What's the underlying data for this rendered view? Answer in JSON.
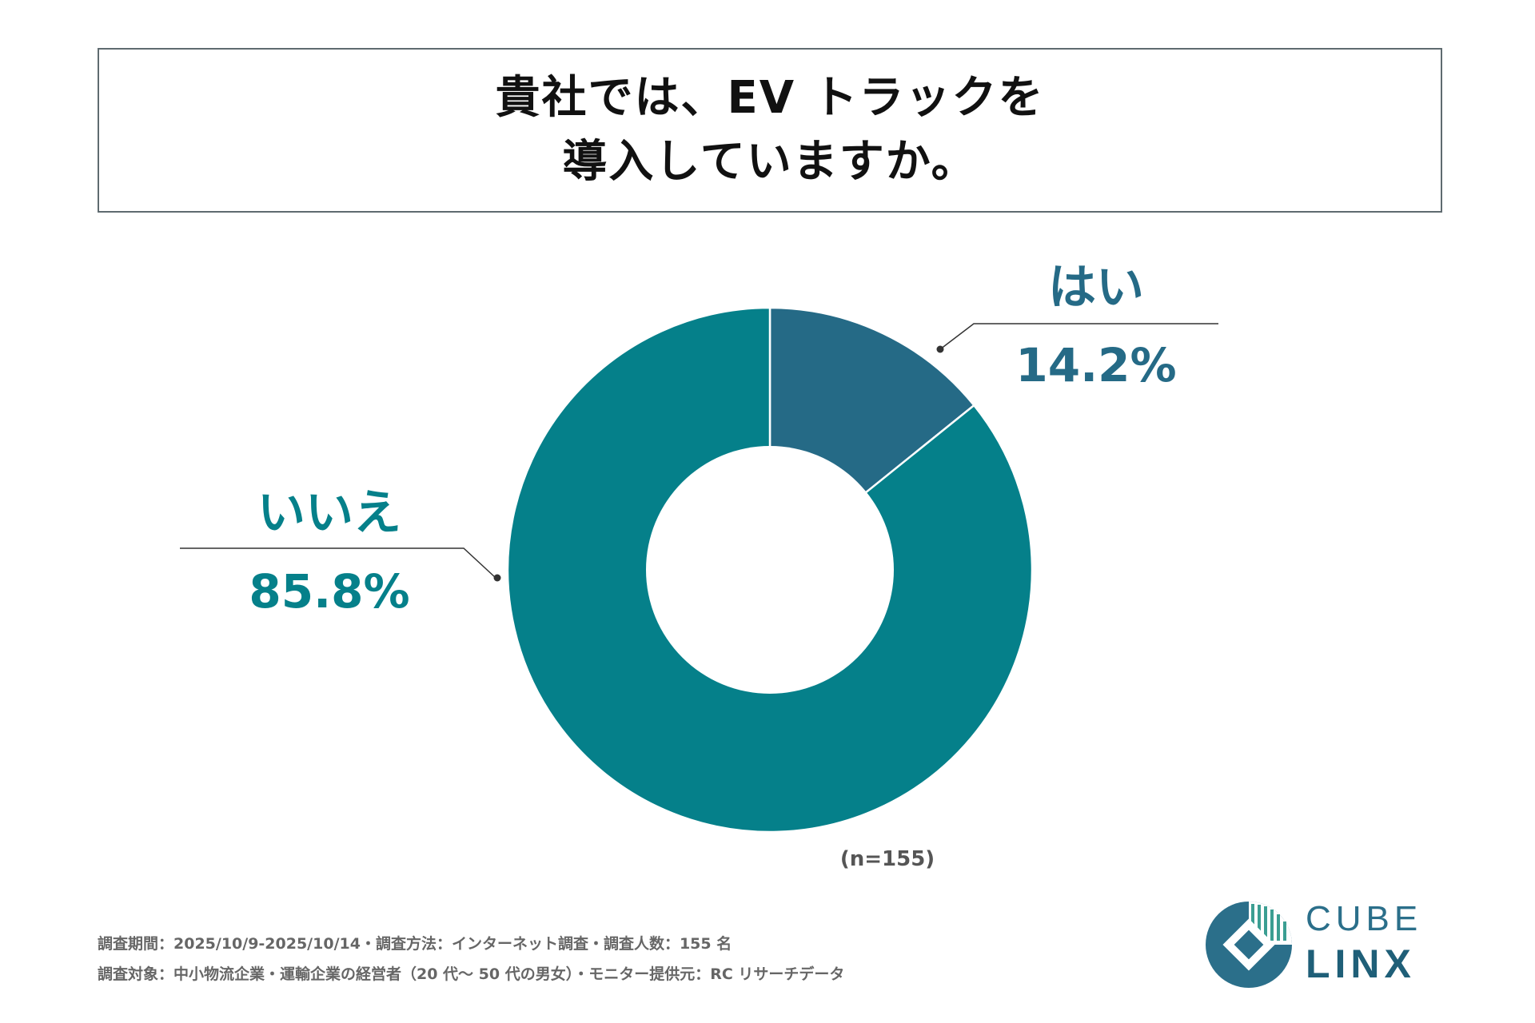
{
  "title": {
    "line1": "貴社では、EV トラックを",
    "line2": "導入していますか。"
  },
  "colors": {
    "yes": "#256a86",
    "no": "#05808a",
    "hole": "#ffffff",
    "leader": "#333333"
  },
  "chart_data": {
    "type": "pie",
    "variant": "donut",
    "title": "貴社では、EV トラックを導入していますか。",
    "categories": [
      "はい",
      "いいえ"
    ],
    "values": [
      14.2,
      85.8
    ],
    "labels": [
      {
        "name": "はい",
        "value_text": "14.2%"
      },
      {
        "name": "いいえ",
        "value_text": "85.8%"
      }
    ],
    "start": "12 o'clock, clockwise"
  },
  "sample_size": "(n=155)",
  "footer": {
    "line1": "調査期間：2025/10/9-2025/10/14・調査方法：インターネット調査・調査人数：155 名",
    "line2": "調査対象：中小物流企業・運輸企業の経営者（20 代〜 50 代の男女）・モニター提供元：RC リサーチデータ"
  },
  "logo": {
    "top": "CUBE",
    "bottom": "LINX"
  }
}
